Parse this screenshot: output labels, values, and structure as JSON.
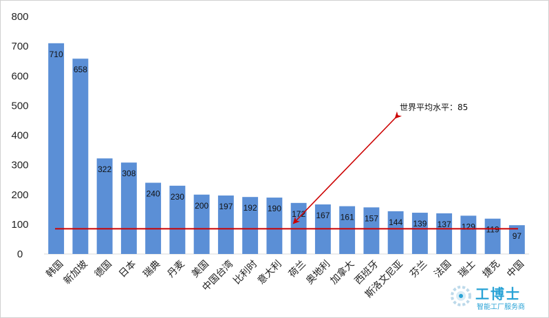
{
  "chart_data": {
    "type": "bar",
    "categories": [
      "韩国",
      "新加坡",
      "德国",
      "日本",
      "瑞典",
      "丹麦",
      "美国",
      "中国台湾",
      "比利时",
      "意大利",
      "荷兰",
      "奥地利",
      "加拿大",
      "西班牙",
      "斯洛文尼亚",
      "芬兰",
      "法国",
      "瑞士",
      "捷克",
      "中国"
    ],
    "values": [
      710,
      658,
      322,
      308,
      240,
      230,
      200,
      197,
      192,
      190,
      172,
      167,
      161,
      157,
      144,
      139,
      137,
      129,
      119,
      97
    ],
    "yticks": [
      0,
      100,
      200,
      300,
      400,
      500,
      600,
      700,
      800
    ],
    "ylim": [
      0,
      800
    ],
    "grid": false,
    "bar_color": "#5b8fd6",
    "reference_line": {
      "value": 85,
      "color": "#cc0000"
    },
    "annotation": {
      "text": "世界平均水平：85",
      "color": "#cc0000"
    }
  },
  "watermark": {
    "title": "工博士",
    "subtitle": "智能工厂服务商",
    "color": "#2aa3d6"
  }
}
